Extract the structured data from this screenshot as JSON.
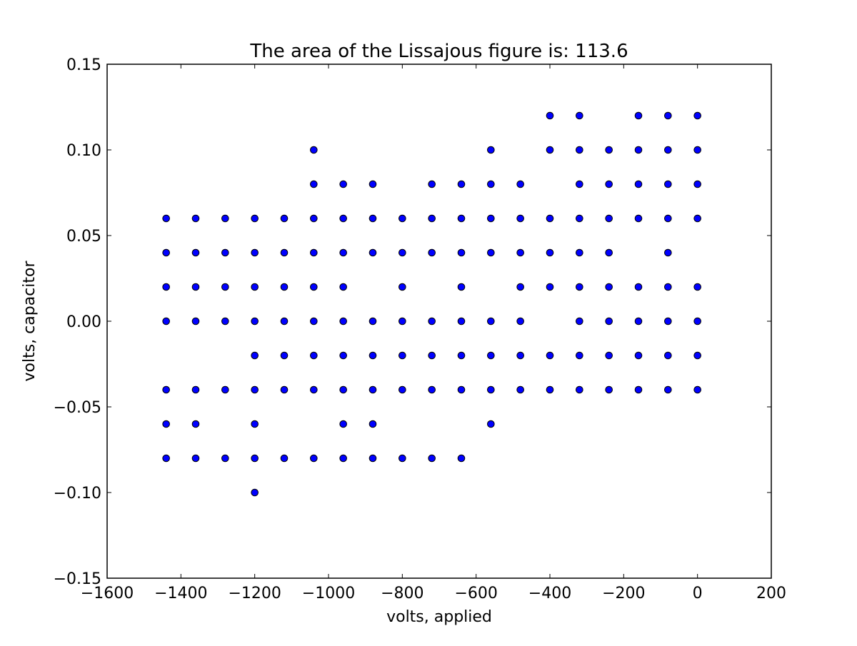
{
  "chart_data": {
    "type": "scatter",
    "title": "The area of the Lissajous figure is: 113.6",
    "xlabel": "volts, applied",
    "ylabel": "volts, capacitor",
    "xlim": [
      -1600,
      200
    ],
    "ylim": [
      -0.15,
      0.15
    ],
    "grid": false,
    "x_ticks": [
      -1600,
      -1400,
      -1200,
      -1000,
      -800,
      -600,
      -400,
      -200,
      0,
      200
    ],
    "x_tick_labels": [
      "−1600",
      "−1400",
      "−1200",
      "−1000",
      "−800",
      "−600",
      "−400",
      "−200",
      "0",
      "200"
    ],
    "y_ticks": [
      -0.15,
      -0.1,
      -0.05,
      0.0,
      0.05,
      0.1,
      0.15
    ],
    "y_tick_labels": [
      "−0.15",
      "−0.10",
      "−0.05",
      "0.00",
      "0.05",
      "0.10",
      "0.15"
    ],
    "marker_color": "#0000ff",
    "marker_edge_color": "#000000",
    "columns": [
      {
        "x": -1440,
        "y": [
          0.06,
          0.04,
          0.02,
          0.0,
          -0.04,
          -0.06,
          -0.08
        ]
      },
      {
        "x": -1360,
        "y": [
          0.06,
          0.04,
          0.02,
          0.0,
          -0.04,
          -0.06,
          -0.08
        ]
      },
      {
        "x": -1280,
        "y": [
          0.06,
          0.04,
          0.02,
          0.0,
          -0.04,
          -0.08
        ]
      },
      {
        "x": -1200,
        "y": [
          0.06,
          0.04,
          0.02,
          0.0,
          -0.02,
          -0.04,
          -0.06,
          -0.08,
          -0.1
        ]
      },
      {
        "x": -1120,
        "y": [
          0.06,
          0.04,
          0.02,
          0.0,
          -0.02,
          -0.04,
          -0.08
        ]
      },
      {
        "x": -1040,
        "y": [
          0.1,
          0.08,
          0.06,
          0.04,
          0.02,
          0.0,
          -0.02,
          -0.04,
          -0.08
        ]
      },
      {
        "x": -960,
        "y": [
          0.08,
          0.06,
          0.04,
          0.02,
          0.0,
          -0.02,
          -0.04,
          -0.06,
          -0.08
        ]
      },
      {
        "x": -880,
        "y": [
          0.08,
          0.06,
          0.04,
          0.0,
          -0.02,
          -0.04,
          -0.06,
          -0.08
        ]
      },
      {
        "x": -800,
        "y": [
          0.06,
          0.04,
          0.02,
          0.0,
          -0.02,
          -0.04,
          -0.08
        ]
      },
      {
        "x": -720,
        "y": [
          0.08,
          0.06,
          0.04,
          0.0,
          -0.02,
          -0.04,
          -0.08
        ]
      },
      {
        "x": -640,
        "y": [
          0.08,
          0.06,
          0.04,
          0.02,
          0.0,
          -0.02,
          -0.04,
          -0.08
        ]
      },
      {
        "x": -560,
        "y": [
          0.1,
          0.08,
          0.06,
          0.04,
          0.0,
          -0.02,
          -0.04,
          -0.06
        ]
      },
      {
        "x": -480,
        "y": [
          0.08,
          0.06,
          0.04,
          0.02,
          0.0,
          -0.02,
          -0.04
        ]
      },
      {
        "x": -400,
        "y": [
          0.12,
          0.1,
          0.06,
          0.04,
          0.02,
          -0.02,
          -0.04
        ]
      },
      {
        "x": -320,
        "y": [
          0.12,
          0.1,
          0.08,
          0.06,
          0.04,
          0.02,
          0.0,
          -0.02,
          -0.04
        ]
      },
      {
        "x": -240,
        "y": [
          0.1,
          0.08,
          0.06,
          0.04,
          0.02,
          0.0,
          -0.02,
          -0.04
        ]
      },
      {
        "x": -160,
        "y": [
          0.12,
          0.1,
          0.08,
          0.06,
          0.02,
          0.0,
          -0.02,
          -0.04
        ]
      },
      {
        "x": -80,
        "y": [
          0.12,
          0.1,
          0.08,
          0.06,
          0.04,
          0.02,
          0.0,
          -0.02,
          -0.04
        ]
      },
      {
        "x": 0,
        "y": [
          0.12,
          0.1,
          0.08,
          0.06,
          0.02,
          0.0,
          -0.02,
          -0.04
        ]
      }
    ]
  }
}
